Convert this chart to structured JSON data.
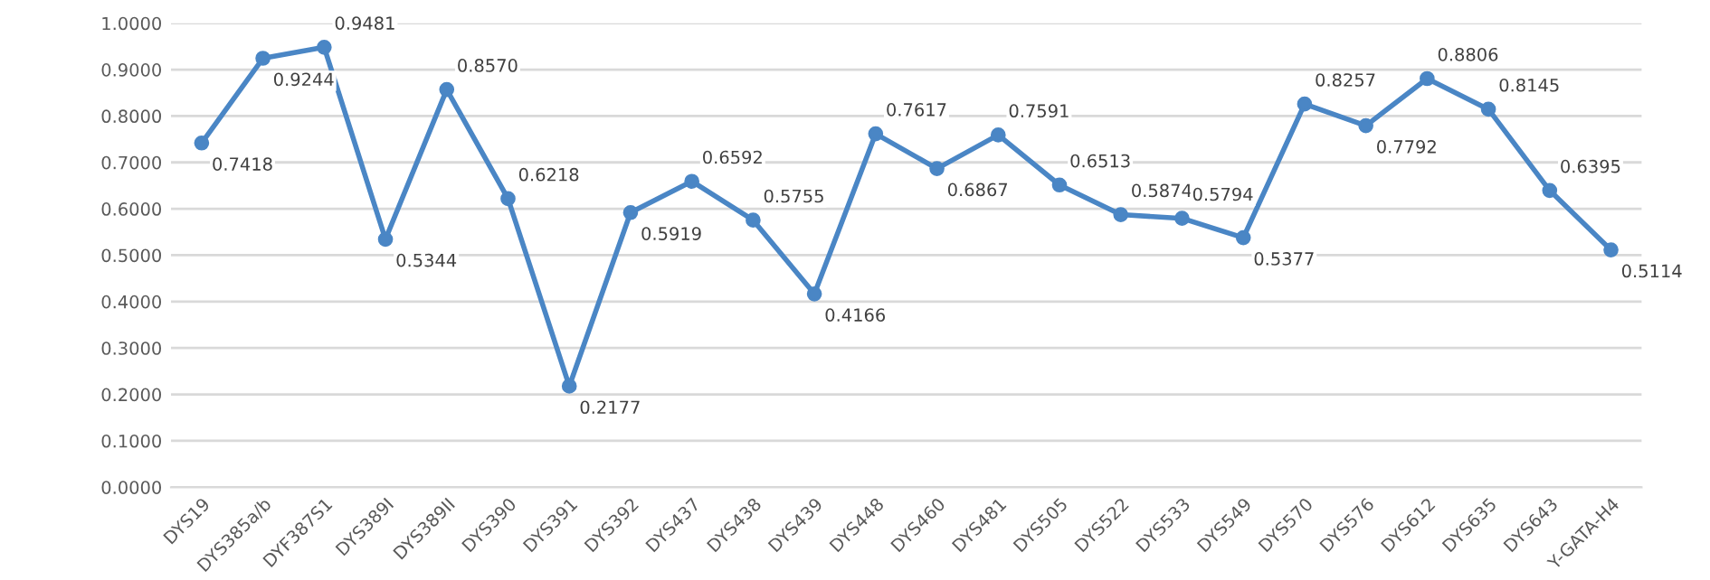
{
  "chart_data": {
    "type": "line",
    "categories": [
      "DYS19",
      "DYS385a/b",
      "DYF387S1",
      "DYS389I",
      "DYS389II",
      "DYS390",
      "DYS391",
      "DYS392",
      "DYS437",
      "DYS438",
      "DYS439",
      "DYS448",
      "DYS460",
      "DYS481",
      "DYS505",
      "DYS522",
      "DYS533",
      "DYS549",
      "DYS570",
      "DYS576",
      "DYS612",
      "DYS635",
      "DYS643",
      "Y-GATA-H4"
    ],
    "series": [
      {
        "color": "#4a86c5",
        "values": [
          0.7418,
          0.9244,
          0.9481,
          0.5344,
          0.857,
          0.6218,
          0.2177,
          0.5919,
          0.6592,
          0.5755,
          0.4166,
          0.7617,
          0.6867,
          0.7591,
          0.6513,
          0.5874,
          0.5794,
          0.5377,
          0.8257,
          0.7792,
          0.8806,
          0.8145,
          0.6395,
          0.5114
        ],
        "value_labels": [
          "0.7418",
          "0.9244",
          "0.9481",
          "0.5344",
          "0.8570",
          "0.6218",
          "0.2177",
          "0.5919",
          "0.6592",
          "0.5755",
          "0.4166",
          "0.7617",
          "0.6867",
          "0.7591",
          "0.6513",
          "0.5874",
          "0.5794",
          "0.5377",
          "0.8257",
          "0.7792",
          "0.8806",
          "0.8145",
          "0.6395",
          "0.5114"
        ]
      }
    ],
    "ylim": [
      0,
      1
    ],
    "yticks": [
      {
        "value": 0,
        "label": "0.0000"
      },
      {
        "value": 0.1,
        "label": "0.1000"
      },
      {
        "value": 0.2,
        "label": "0.2000"
      },
      {
        "value": 0.3,
        "label": "0.3000"
      },
      {
        "value": 0.4,
        "label": "0.4000"
      },
      {
        "value": 0.5,
        "label": "0.5000"
      },
      {
        "value": 0.6,
        "label": "0.6000"
      },
      {
        "value": 0.7,
        "label": "0.7000"
      },
      {
        "value": 0.8,
        "label": "0.8000"
      },
      {
        "value": 0.9,
        "label": "0.9000"
      },
      {
        "value": 1,
        "label": "1.0000"
      }
    ],
    "grid": "y",
    "legend": false,
    "marker": "circle",
    "line_style": "solid"
  }
}
